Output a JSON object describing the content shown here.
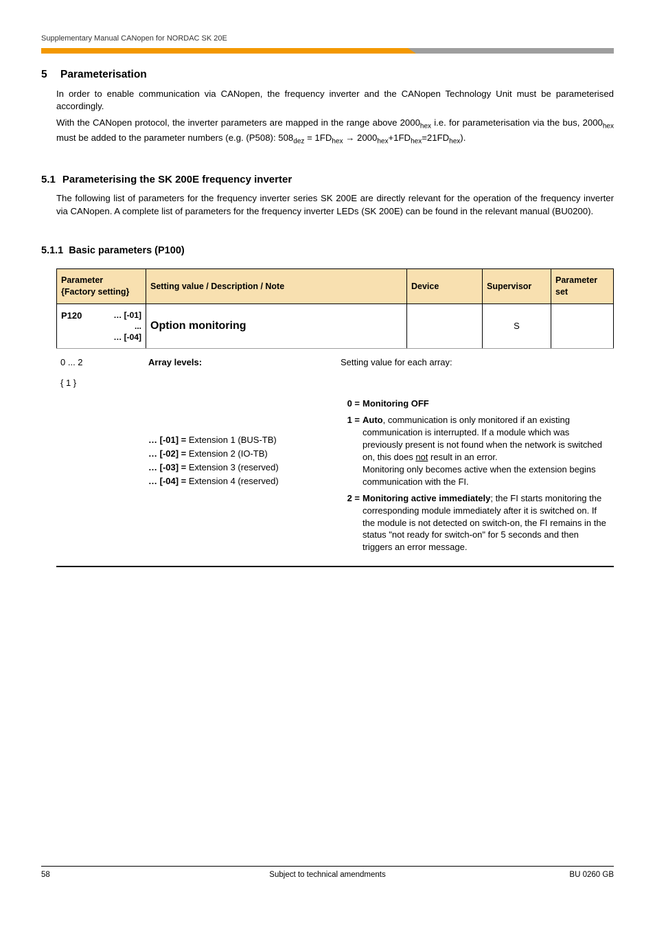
{
  "doc": {
    "running_header": "Supplementary Manual CANopen for NORDAC SK 20E",
    "footer_page": "58",
    "footer_center": "Subject to technical amendments",
    "footer_right": "BU 0260 GB"
  },
  "s5": {
    "num": "5",
    "title": "Parameterisation",
    "p1": "In order to enable communication via CANopen, the frequency inverter and the CANopen Technology Unit must be parameterised accordingly.",
    "p2_a": "With the CANopen protocol, the inverter parameters are mapped in the range above 2000",
    "p2_b": " i.e. for parameterisation via the bus, 2000",
    "p2_c": "  must be added to the parameter numbers (e.g. (P508): 508",
    "p2_d": " = 1FD",
    "p2_e": " → 2000",
    "p2_f": "+1FD",
    "p2_g": "=21FD",
    "p2_h": ").",
    "hex": "hex",
    "dez": "dez"
  },
  "s51": {
    "num": "5.1",
    "title": "Parameterising the SK 200E frequency inverter",
    "p1": "The following list of parameters for the frequency inverter series SK 200E are directly relevant for the operation of the frequency inverter via CANopen. A complete list of parameters for the frequency inverter LEDs (SK 200E) can be found in the relevant manual (BU0200)."
  },
  "s511": {
    "num": "5.1.1",
    "title": "Basic parameters (P100)"
  },
  "table": {
    "head": {
      "param_l1": "Parameter",
      "param_l2": "{Factory setting}",
      "setting": "Setting value / Description / Note",
      "device": "Device",
      "supervisor": "Supervisor",
      "pset_l1": "Parameter",
      "pset_l2": "set"
    },
    "row": {
      "pcode": "P120",
      "arr1": "… [-01]",
      "arr2": "...",
      "arr3": "… [-04]",
      "title": "Option monitoring",
      "sup": "S"
    },
    "detail": {
      "range": "0 ... 2",
      "factory": "{ 1 }",
      "arr_label": "Array levels:",
      "arr_note": "Setting value for each array:",
      "ext1": "… [-01] = ",
      "ext1v": "Extension 1 (BUS-TB)",
      "ext2": "… [-02] = ",
      "ext2v": "Extension 2 (IO-TB)",
      "ext3": "… [-03] = ",
      "ext3v": "Extension 3 (reserved)",
      "ext4": "… [-04] = ",
      "ext4v": "Extension 4 (reserved)",
      "v0k": "0 =",
      "v0": "Monitoring OFF",
      "v1k": "1 =",
      "v1_a": "Auto",
      "v1_b": ", communication is only monitored if an existing communication is interrupted. If a module which was previously present is not found when the network is switched on, this does ",
      "v1_not": "not",
      "v1_c": " result in an error.",
      "v1_d": "Monitoring only becomes active when the extension begins communication with the FI.",
      "v2k": "2 =",
      "v2_a": "Monitoring active immediately",
      "v2_b": "; the FI starts monitoring the corresponding module immediately after it is switched on. If the module is not detected on switch-on, the FI remains in the status \"not ready for switch-on\" for 5 seconds and then triggers an error message."
    }
  }
}
